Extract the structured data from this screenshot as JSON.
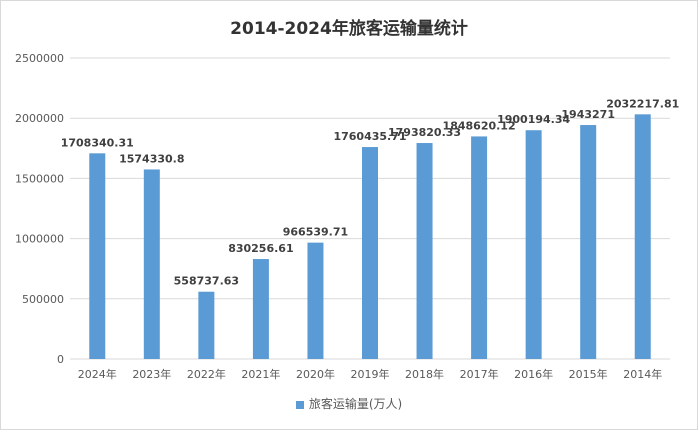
{
  "chart_data": {
    "type": "bar",
    "title": "2014-2024年旅客运输量统计",
    "categories": [
      "2024年",
      "2023年",
      "2022年",
      "2021年",
      "2020年",
      "2019年",
      "2018年",
      "2017年",
      "2016年",
      "2015年",
      "2014年"
    ],
    "series": [
      {
        "name": "旅客运输量(万人)",
        "values": [
          1708340.31,
          1574330.8,
          558737.63,
          830256.61,
          966539.71,
          1760435.71,
          1793820.33,
          1848620.12,
          1900194.34,
          1943271,
          2032217.81
        ],
        "labels": [
          "1708340.31",
          "1574330.8",
          "558737.63",
          "830256.61",
          "966539.71",
          "1760435.71",
          "1793820.33",
          "1848620.12",
          "1900194.34",
          "1943271",
          "2032217.81"
        ]
      }
    ],
    "ylim": [
      0,
      2500000
    ],
    "yticks": [
      "0",
      "500000",
      "1000000",
      "1500000",
      "2000000",
      "2500000"
    ],
    "grid": true,
    "legend_position": "bottom",
    "bar_color": "#5b9bd5"
  }
}
